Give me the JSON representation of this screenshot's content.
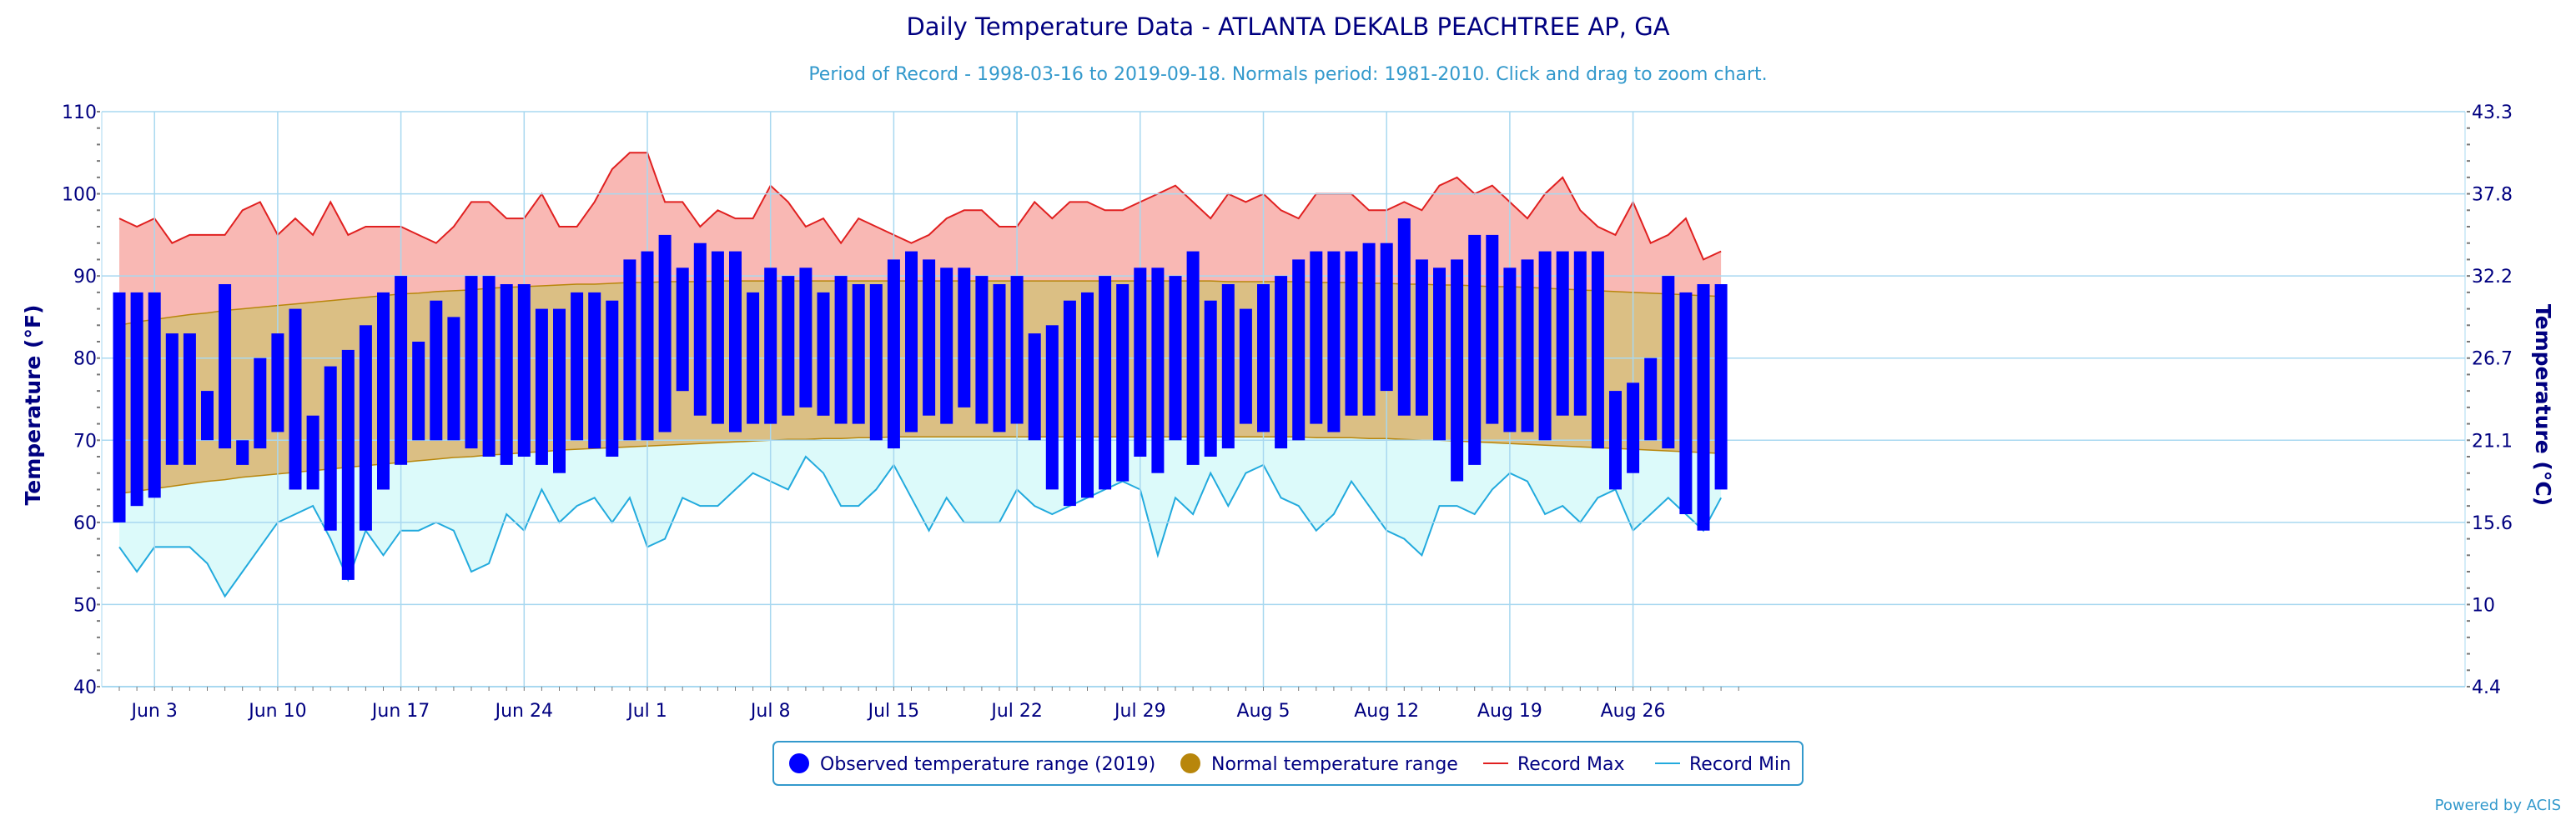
{
  "colors": {
    "title": "#000080",
    "subtitle": "#3399cc",
    "observed": "#0000ff",
    "normal_fill": "#dbbf84",
    "normal_line": "#b8860b",
    "normal_marker": "#b8860b",
    "record_max_line": "#e02020",
    "record_max_fill": "#f9b8b4",
    "record_min_line": "#22aadd",
    "record_min_fill": "#dcfafa",
    "grid": "#a8d8f0",
    "axis_text": "#000080"
  },
  "chart_data": {
    "type": "bar",
    "title": "Daily Temperature Data - ATLANTA DEKALB PEACHTREE AP, GA",
    "subtitle": "Period of Record - 1998-03-16 to 2019-09-18. Normals period: 1981-2010. Click and drag to zoom chart.",
    "ylabel": "Temperature (°F)",
    "ylabel_right": "Temperature (°C)",
    "ylim": [
      40,
      110
    ],
    "yticks": [
      "40",
      "50",
      "60",
      "70",
      "80",
      "90",
      "100",
      "110"
    ],
    "yticks_right": [
      "4.4",
      "10",
      "15.6",
      "21.1",
      "26.7",
      "32.2",
      "37.8",
      "43.3"
    ],
    "x_start": "2019-06-01",
    "x_end": "2019-09-01",
    "xticks": [
      "Jun 3",
      "Jun 10",
      "Jun 17",
      "Jun 24",
      "Jul 1",
      "Jul 8",
      "Jul 15",
      "Jul 22",
      "Jul 29",
      "Aug 5",
      "Aug 12",
      "Aug 19",
      "Aug 26"
    ],
    "grid": true,
    "legend_position": "bottom-center",
    "legend": [
      "Observed temperature range (2019)",
      "Normal temperature range",
      "Record Max",
      "Record Min"
    ],
    "credit": "Powered by ACIS",
    "observed_max": [
      88,
      88,
      88,
      83,
      83,
      76,
      89,
      70,
      80,
      83,
      86,
      73,
      79,
      81,
      84,
      88,
      90,
      82,
      87,
      85,
      90,
      90,
      89,
      89,
      86,
      86,
      88,
      88,
      87,
      92,
      93,
      95,
      91,
      94,
      93,
      93,
      88,
      91,
      90,
      91,
      88,
      90,
      89,
      89,
      92,
      93,
      92,
      91,
      91,
      90,
      89,
      90,
      83,
      84,
      87,
      88,
      90,
      89,
      91,
      91,
      90,
      93,
      87,
      89,
      86,
      89,
      90,
      92,
      93,
      93,
      93,
      94,
      94,
      97,
      92,
      91,
      92,
      95,
      95,
      91,
      92,
      93,
      93,
      93,
      93,
      76,
      77,
      80,
      90,
      88,
      89,
      89
    ],
    "observed_min": [
      60,
      62,
      63,
      67,
      67,
      70,
      69,
      67,
      69,
      71,
      64,
      64,
      59,
      53,
      59,
      64,
      67,
      70,
      70,
      70,
      69,
      68,
      67,
      68,
      67,
      66,
      70,
      69,
      68,
      70,
      70,
      71,
      76,
      73,
      72,
      71,
      72,
      72,
      73,
      74,
      73,
      72,
      72,
      70,
      69,
      71,
      73,
      72,
      74,
      72,
      71,
      72,
      70,
      64,
      62,
      63,
      64,
      65,
      68,
      66,
      70,
      67,
      68,
      69,
      72,
      71,
      69,
      70,
      72,
      71,
      73,
      73,
      76,
      73,
      73,
      70,
      65,
      67,
      72,
      71,
      71,
      70,
      73,
      73,
      69,
      64,
      66,
      70,
      69,
      61,
      59,
      64
    ],
    "normal_max": [
      84.0,
      84.4,
      84.7,
      85.0,
      85.3,
      85.5,
      85.8,
      86.0,
      86.2,
      86.4,
      86.6,
      86.8,
      87.0,
      87.2,
      87.4,
      87.6,
      87.8,
      87.9,
      88.1,
      88.2,
      88.3,
      88.5,
      88.6,
      88.7,
      88.8,
      88.9,
      89.0,
      89.0,
      89.1,
      89.2,
      89.2,
      89.3,
      89.3,
      89.3,
      89.4,
      89.4,
      89.4,
      89.4,
      89.4,
      89.4,
      89.4,
      89.4,
      89.4,
      89.4,
      89.4,
      89.4,
      89.4,
      89.4,
      89.4,
      89.4,
      89.4,
      89.4,
      89.4,
      89.4,
      89.4,
      89.4,
      89.4,
      89.4,
      89.4,
      89.4,
      89.4,
      89.4,
      89.4,
      89.3,
      89.3,
      89.3,
      89.3,
      89.3,
      89.2,
      89.2,
      89.2,
      89.1,
      89.1,
      89.0,
      89.0,
      88.9,
      88.9,
      88.8,
      88.7,
      88.7,
      88.6,
      88.5,
      88.4,
      88.3,
      88.2,
      88.1,
      88.0,
      87.9,
      87.8,
      87.7,
      87.6,
      87.5
    ],
    "normal_min": [
      63.5,
      63.8,
      64.1,
      64.4,
      64.7,
      65.0,
      65.2,
      65.5,
      65.7,
      65.9,
      66.1,
      66.3,
      66.5,
      66.7,
      66.9,
      67.1,
      67.3,
      67.5,
      67.7,
      67.9,
      68.0,
      68.2,
      68.3,
      68.5,
      68.6,
      68.8,
      68.9,
      69.0,
      69.1,
      69.2,
      69.3,
      69.4,
      69.5,
      69.6,
      69.7,
      69.8,
      69.9,
      70.0,
      70.1,
      70.1,
      70.2,
      70.2,
      70.3,
      70.3,
      70.4,
      70.4,
      70.4,
      70.4,
      70.4,
      70.4,
      70.4,
      70.4,
      70.4,
      70.4,
      70.4,
      70.4,
      70.4,
      70.4,
      70.4,
      70.4,
      70.4,
      70.4,
      70.4,
      70.4,
      70.4,
      70.4,
      70.4,
      70.4,
      70.3,
      70.3,
      70.3,
      70.2,
      70.2,
      70.1,
      70.0,
      70.0,
      69.9,
      69.8,
      69.7,
      69.6,
      69.5,
      69.4,
      69.3,
      69.2,
      69.1,
      69.0,
      68.9,
      68.8,
      68.7,
      68.6,
      68.5,
      68.4
    ],
    "record_max": [
      97,
      96,
      97,
      94,
      95,
      95,
      95,
      98,
      99,
      95,
      97,
      95,
      99,
      95,
      96,
      96,
      96,
      95,
      94,
      96,
      99,
      99,
      97,
      97,
      100,
      96,
      96,
      99,
      103,
      105,
      105,
      99,
      99,
      96,
      98,
      97,
      97,
      101,
      99,
      96,
      97,
      94,
      97,
      96,
      95,
      94,
      95,
      97,
      98,
      98,
      96,
      96,
      99,
      97,
      99,
      99,
      98,
      98,
      99,
      100,
      101,
      99,
      97,
      100,
      99,
      100,
      98,
      97,
      100,
      100,
      100,
      98,
      98,
      99,
      98,
      101,
      102,
      100,
      101,
      99,
      97,
      100,
      102,
      98,
      96,
      95,
      99,
      94,
      95,
      97,
      92,
      93
    ],
    "record_min": [
      57,
      54,
      57,
      57,
      57,
      55,
      51,
      54,
      57,
      60,
      61,
      62,
      58,
      53,
      59,
      56,
      59,
      59,
      60,
      59,
      54,
      55,
      61,
      59,
      64,
      60,
      62,
      63,
      60,
      63,
      57,
      58,
      63,
      62,
      62,
      64,
      66,
      65,
      64,
      68,
      66,
      62,
      62,
      64,
      67,
      63,
      59,
      63,
      60,
      60,
      60,
      64,
      62,
      61,
      62,
      63,
      64,
      65,
      64,
      56,
      63,
      61,
      66,
      62,
      66,
      67,
      63,
      62,
      59,
      61,
      65,
      62,
      59,
      58,
      56,
      62,
      62,
      61,
      64,
      66,
      65,
      61,
      62,
      60,
      63,
      64,
      59,
      61,
      63,
      61,
      59,
      63
    ]
  }
}
